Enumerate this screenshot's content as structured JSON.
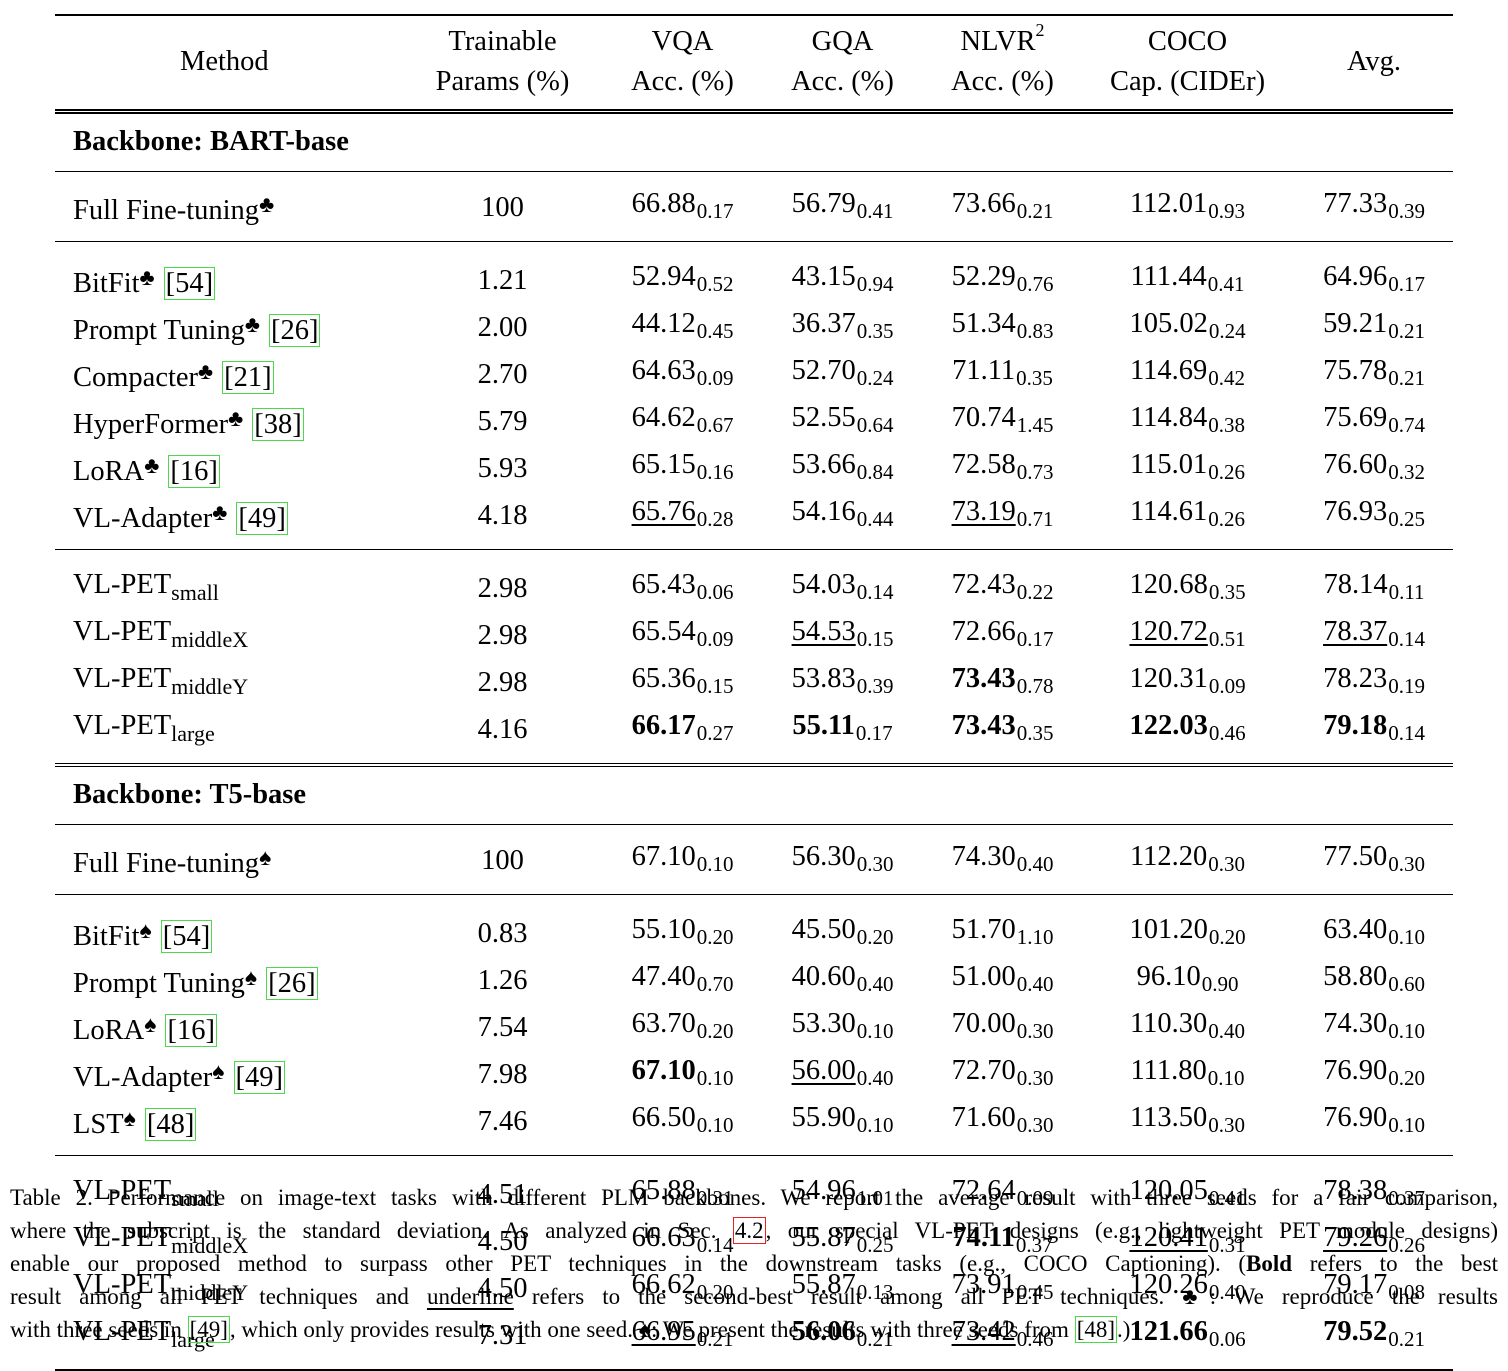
{
  "table": {
    "headers": [
      {
        "line1": "Method",
        "line2": ""
      },
      {
        "line1": "Trainable",
        "line2": "Params (%)"
      },
      {
        "line1": "VQA",
        "line2": "Acc. (%)"
      },
      {
        "line1": "GQA",
        "line2": "Acc. (%)"
      },
      {
        "line1": "NLVR",
        "line2": "Acc. (%)",
        "sup": "2"
      },
      {
        "line1": "COCO",
        "line2": "Cap. (CIDEr)"
      },
      {
        "line1": "Avg.",
        "line2": ""
      }
    ],
    "groups": [
      {
        "title": "Backbone: BART-base",
        "sections": [
          [
            {
              "name": "Full Fine-tuning",
              "sym": "♣",
              "cite": "",
              "params": "100",
              "vals": [
                [
                  "66.88",
                  "0.17"
                ],
                [
                  "56.79",
                  "0.41"
                ],
                [
                  "73.66",
                  "0.21"
                ],
                [
                  "112.01",
                  "0.93"
                ],
                [
                  "77.33",
                  "0.39"
                ]
              ],
              "style": [
                "",
                "",
                "",
                "",
                ""
              ]
            }
          ],
          [
            {
              "name": "BitFit",
              "sym": "♣",
              "cite": "54",
              "params": "1.21",
              "vals": [
                [
                  "52.94",
                  "0.52"
                ],
                [
                  "43.15",
                  "0.94"
                ],
                [
                  "52.29",
                  "0.76"
                ],
                [
                  "111.44",
                  "0.41"
                ],
                [
                  "64.96",
                  "0.17"
                ]
              ],
              "style": [
                "",
                "",
                "",
                "",
                ""
              ]
            },
            {
              "name": "Prompt Tuning",
              "sym": "♣",
              "cite": "26",
              "params": "2.00",
              "vals": [
                [
                  "44.12",
                  "0.45"
                ],
                [
                  "36.37",
                  "0.35"
                ],
                [
                  "51.34",
                  "0.83"
                ],
                [
                  "105.02",
                  "0.24"
                ],
                [
                  "59.21",
                  "0.21"
                ]
              ],
              "style": [
                "",
                "",
                "",
                "",
                ""
              ]
            },
            {
              "name": "Compacter",
              "sym": "♣",
              "cite": "21",
              "params": "2.70",
              "vals": [
                [
                  "64.63",
                  "0.09"
                ],
                [
                  "52.70",
                  "0.24"
                ],
                [
                  "71.11",
                  "0.35"
                ],
                [
                  "114.69",
                  "0.42"
                ],
                [
                  "75.78",
                  "0.21"
                ]
              ],
              "style": [
                "",
                "",
                "",
                "",
                ""
              ]
            },
            {
              "name": "HyperFormer",
              "sym": "♣",
              "cite": "38",
              "params": "5.79",
              "vals": [
                [
                  "64.62",
                  "0.67"
                ],
                [
                  "52.55",
                  "0.64"
                ],
                [
                  "70.74",
                  "1.45"
                ],
                [
                  "114.84",
                  "0.38"
                ],
                [
                  "75.69",
                  "0.74"
                ]
              ],
              "style": [
                "",
                "",
                "",
                "",
                ""
              ]
            },
            {
              "name": "LoRA",
              "sym": "♣",
              "cite": "16",
              "params": "5.93",
              "vals": [
                [
                  "65.15",
                  "0.16"
                ],
                [
                  "53.66",
                  "0.84"
                ],
                [
                  "72.58",
                  "0.73"
                ],
                [
                  "115.01",
                  "0.26"
                ],
                [
                  "76.60",
                  "0.32"
                ]
              ],
              "style": [
                "",
                "",
                "",
                "",
                ""
              ]
            },
            {
              "name": "VL-Adapter",
              "sym": "♣",
              "cite": "49",
              "params": "4.18",
              "vals": [
                [
                  "65.76",
                  "0.28"
                ],
                [
                  "54.16",
                  "0.44"
                ],
                [
                  "73.19",
                  "0.71"
                ],
                [
                  "114.61",
                  "0.26"
                ],
                [
                  "76.93",
                  "0.25"
                ]
              ],
              "style": [
                "u",
                "",
                "u",
                "",
                ""
              ]
            }
          ],
          [
            {
              "name": "VL-PET",
              "sub": "small",
              "params": "2.98",
              "vals": [
                [
                  "65.43",
                  "0.06"
                ],
                [
                  "54.03",
                  "0.14"
                ],
                [
                  "72.43",
                  "0.22"
                ],
                [
                  "120.68",
                  "0.35"
                ],
                [
                  "78.14",
                  "0.11"
                ]
              ],
              "style": [
                "",
                "",
                "",
                "",
                ""
              ]
            },
            {
              "name": "VL-PET",
              "sub": "middleX",
              "params": "2.98",
              "vals": [
                [
                  "65.54",
                  "0.09"
                ],
                [
                  "54.53",
                  "0.15"
                ],
                [
                  "72.66",
                  "0.17"
                ],
                [
                  "120.72",
                  "0.51"
                ],
                [
                  "78.37",
                  "0.14"
                ]
              ],
              "style": [
                "",
                "u",
                "",
                "u",
                "u"
              ]
            },
            {
              "name": "VL-PET",
              "sub": "middleY",
              "params": "2.98",
              "vals": [
                [
                  "65.36",
                  "0.15"
                ],
                [
                  "53.83",
                  "0.39"
                ],
                [
                  "73.43",
                  "0.78"
                ],
                [
                  "120.31",
                  "0.09"
                ],
                [
                  "78.23",
                  "0.19"
                ]
              ],
              "style": [
                "",
                "",
                "b",
                "",
                ""
              ]
            },
            {
              "name": "VL-PET",
              "sub": "large",
              "params": "4.16",
              "vals": [
                [
                  "66.17",
                  "0.27"
                ],
                [
                  "55.11",
                  "0.17"
                ],
                [
                  "73.43",
                  "0.35"
                ],
                [
                  "122.03",
                  "0.46"
                ],
                [
                  "79.18",
                  "0.14"
                ]
              ],
              "style": [
                "b",
                "b",
                "b",
                "b",
                "b"
              ]
            }
          ]
        ]
      },
      {
        "title": "Backbone: T5-base",
        "sections": [
          [
            {
              "name": "Full Fine-tuning",
              "sym": "♠",
              "cite": "",
              "params": "100",
              "vals": [
                [
                  "67.10",
                  "0.10"
                ],
                [
                  "56.30",
                  "0.30"
                ],
                [
                  "74.30",
                  "0.40"
                ],
                [
                  "112.20",
                  "0.30"
                ],
                [
                  "77.50",
                  "0.30"
                ]
              ],
              "style": [
                "",
                "",
                "",
                "",
                ""
              ]
            }
          ],
          [
            {
              "name": "BitFit",
              "sym": "♠",
              "cite": "54",
              "params": "0.83",
              "vals": [
                [
                  "55.10",
                  "0.20"
                ],
                [
                  "45.50",
                  "0.20"
                ],
                [
                  "51.70",
                  "1.10"
                ],
                [
                  "101.20",
                  "0.20"
                ],
                [
                  "63.40",
                  "0.10"
                ]
              ],
              "style": [
                "",
                "",
                "",
                "",
                ""
              ]
            },
            {
              "name": "Prompt Tuning",
              "sym": "♠",
              "cite": "26",
              "params": "1.26",
              "vals": [
                [
                  "47.40",
                  "0.70"
                ],
                [
                  "40.60",
                  "0.40"
                ],
                [
                  "51.00",
                  "0.40"
                ],
                [
                  "96.10",
                  "0.90"
                ],
                [
                  "58.80",
                  "0.60"
                ]
              ],
              "style": [
                "",
                "",
                "",
                "",
                ""
              ]
            },
            {
              "name": "LoRA",
              "sym": "♠",
              "cite": "16",
              "params": "7.54",
              "vals": [
                [
                  "63.70",
                  "0.20"
                ],
                [
                  "53.30",
                  "0.10"
                ],
                [
                  "70.00",
                  "0.30"
                ],
                [
                  "110.30",
                  "0.40"
                ],
                [
                  "74.30",
                  "0.10"
                ]
              ],
              "style": [
                "",
                "",
                "",
                "",
                ""
              ]
            },
            {
              "name": "VL-Adapter",
              "sym": "♠",
              "cite": "49",
              "params": "7.98",
              "vals": [
                [
                  "67.10",
                  "0.10"
                ],
                [
                  "56.00",
                  "0.40"
                ],
                [
                  "72.70",
                  "0.30"
                ],
                [
                  "111.80",
                  "0.10"
                ],
                [
                  "76.90",
                  "0.20"
                ]
              ],
              "style": [
                "b",
                "u",
                "",
                "",
                ""
              ]
            },
            {
              "name": "LST",
              "sym": "♠",
              "cite": "48",
              "params": "7.46",
              "vals": [
                [
                  "66.50",
                  "0.10"
                ],
                [
                  "55.90",
                  "0.10"
                ],
                [
                  "71.60",
                  "0.30"
                ],
                [
                  "113.50",
                  "0.30"
                ],
                [
                  "76.90",
                  "0.10"
                ]
              ],
              "style": [
                "",
                "",
                "",
                "",
                ""
              ]
            }
          ],
          [
            {
              "name": "VL-PET",
              "sub": "small",
              "params": "4.51",
              "vals": [
                [
                  "65.88",
                  "0.31"
                ],
                [
                  "54.96",
                  "1.01"
                ],
                [
                  "72.64",
                  "0.09"
                ],
                [
                  "120.05",
                  "0.41"
                ],
                [
                  "78.38",
                  "0.37"
                ]
              ],
              "style": [
                "",
                "",
                "",
                "",
                ""
              ]
            },
            {
              "name": "VL-PET",
              "sub": "middleX",
              "params": "4.50",
              "vals": [
                [
                  "66.63",
                  "0.14"
                ],
                [
                  "55.87",
                  "0.25"
                ],
                [
                  "74.11",
                  "0.37"
                ],
                [
                  "120.41",
                  "0.31"
                ],
                [
                  "79.26",
                  "0.26"
                ]
              ],
              "style": [
                "",
                "",
                "b",
                "u",
                "u"
              ]
            },
            {
              "name": "VL-PET",
              "sub": "middleY",
              "params": "4.50",
              "vals": [
                [
                  "66.62",
                  "0.20"
                ],
                [
                  "55.87",
                  "0.13"
                ],
                [
                  "73.91",
                  "0.45"
                ],
                [
                  "120.26",
                  "0.40"
                ],
                [
                  "79.17",
                  "0.08"
                ]
              ],
              "style": [
                "",
                "",
                "",
                "",
                ""
              ]
            },
            {
              "name": "VL-PET",
              "sub": "large",
              "params": "7.31",
              "vals": [
                [
                  "66.95",
                  "0.21"
                ],
                [
                  "56.06",
                  "0.21"
                ],
                [
                  "73.42",
                  "0.46"
                ],
                [
                  "121.66",
                  "0.06"
                ],
                [
                  "79.52",
                  "0.21"
                ]
              ],
              "style": [
                "u",
                "b",
                "u",
                "b",
                "b"
              ]
            }
          ]
        ]
      }
    ]
  },
  "caption": {
    "lines": [
      [
        {
          "t": "Table 2. Performance on image-text tasks with different PLM backbones. We report the average result with three seeds for a fair comparison,"
        }
      ],
      [
        {
          "t": "where the subscript is the standard deviation. As analyzed in Sec. "
        },
        {
          "t": "4.2",
          "cls": "cite-red"
        },
        {
          "t": ", our special VL-PET designs (e.g., lightweight PET module designs)"
        }
      ],
      [
        {
          "t": "enable our proposed method to surpass other PET techniques in the downstream tasks (e.g., COCO Captioning). ("
        },
        {
          "t": "Bold",
          "cls": "b"
        },
        {
          "t": " refers to the best"
        }
      ],
      [
        {
          "t": "result among all PET techniques and "
        },
        {
          "t": "underline",
          "cls": "u"
        },
        {
          "t": " refers to the second-best result among all PET techniques. ♣: We reproduce the results"
        }
      ],
      [
        {
          "t": "with three seeds in "
        },
        {
          "t": "[49]",
          "cls": "cite2"
        },
        {
          "t": ", which only provides results with one seed. ♠: We present the results with three seeds from "
        },
        {
          "t": "[48]",
          "cls": "cite2"
        },
        {
          "t": ".)"
        }
      ]
    ]
  }
}
